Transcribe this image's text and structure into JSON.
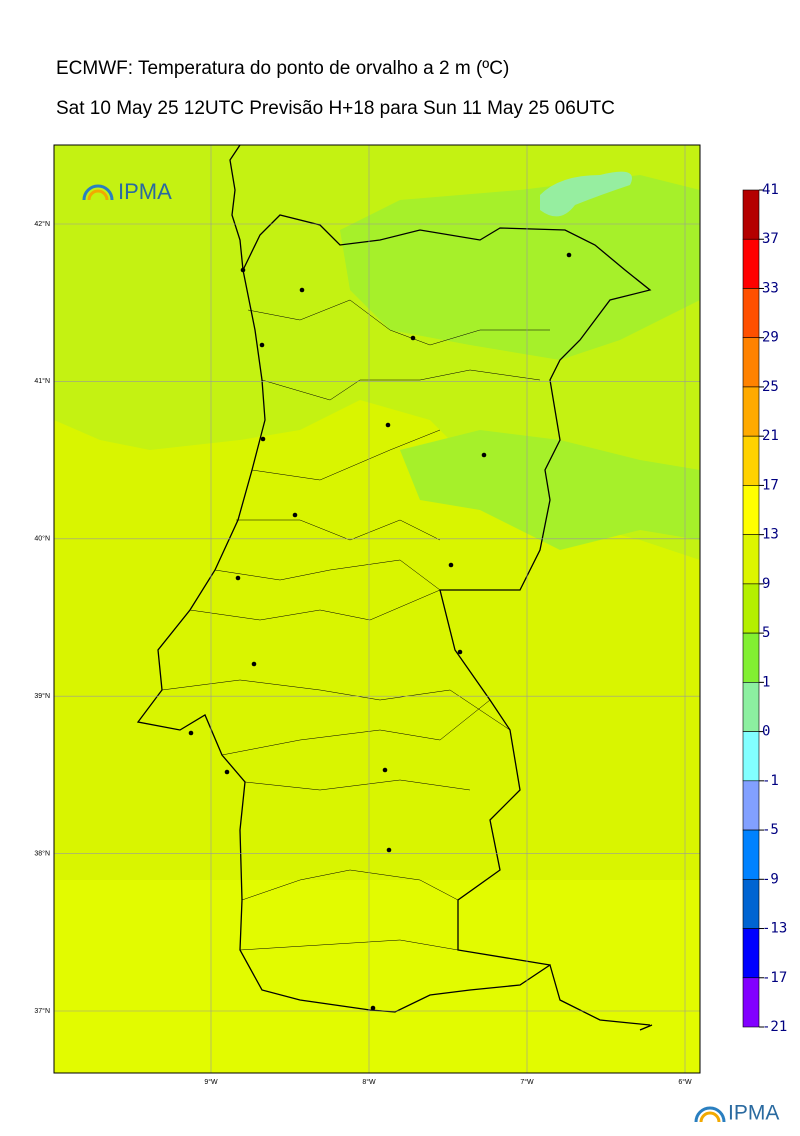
{
  "title": "ECMWF: Temperatura do ponto de orvalho a 2 m (ºC)",
  "subtitle": "Sat 10 May 25 12UTC Previsão H+18 para Sun 11 May 25 06UTC",
  "logo_text": "IPMA",
  "lat_labels": [
    "42°N",
    "41°N",
    "40°N",
    "39°N",
    "38°N",
    "37°N"
  ],
  "lon_labels": [
    "9°W",
    "8°W",
    "7°W",
    "6°W"
  ],
  "colorbar": {
    "ticks": [
      41,
      37,
      33,
      29,
      25,
      21,
      17,
      13,
      9,
      5,
      1,
      0,
      -1,
      -5,
      -9,
      -13,
      -17,
      -21
    ],
    "colors": [
      "#b40000",
      "#ff0000",
      "#ff5000",
      "#ff8200",
      "#ffaa00",
      "#ffd200",
      "#ffff00",
      "#dcf500",
      "#b4f000",
      "#82f032",
      "#8cf0a0",
      "#82ffff",
      "#82a0ff",
      "#0082ff",
      "#0064d2",
      "#0000ff",
      "#8200ff"
    ]
  }
}
